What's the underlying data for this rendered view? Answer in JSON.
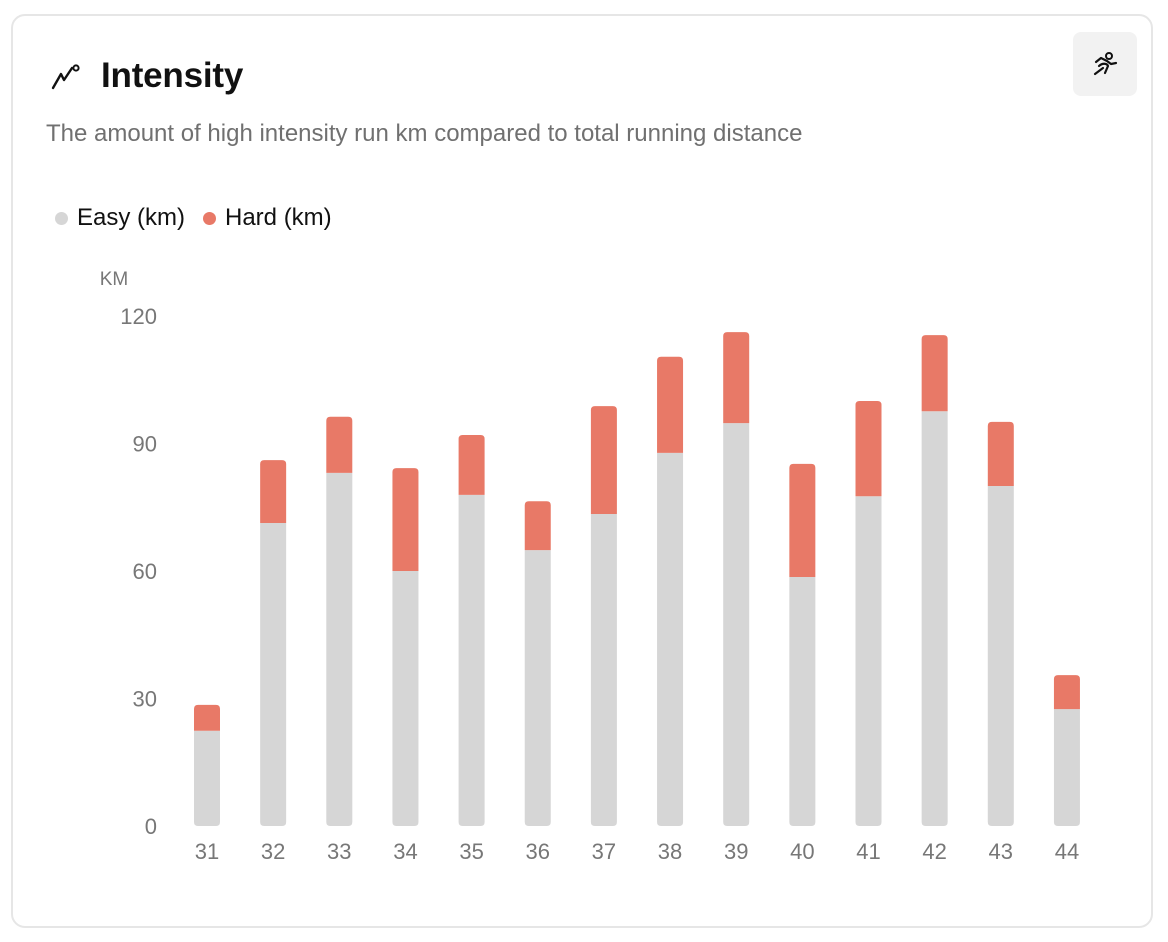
{
  "card": {
    "title": "Intensity",
    "title_icon": "trend-line-icon",
    "action_icon": "running-figure-icon",
    "subtitle": "The amount of high intensity run km compared to total running distance"
  },
  "colors": {
    "easy": "#d6d6d6",
    "hard": "#e87967",
    "text_muted": "#777777"
  },
  "chart_data": {
    "type": "bar",
    "stacked": true,
    "title": "Intensity",
    "subtitle": "The amount of high intensity run km compared to total running distance",
    "xlabel": "",
    "ylabel": "KM",
    "ylim": [
      0,
      120
    ],
    "yticks": [
      0,
      30,
      60,
      90,
      120
    ],
    "grid": false,
    "legend": "top-left",
    "categories": [
      "31",
      "32",
      "33",
      "34",
      "35",
      "36",
      "37",
      "38",
      "39",
      "40",
      "41",
      "42",
      "43",
      "44"
    ],
    "series": [
      {
        "name": "Easy (km)",
        "color": "#d6d6d6",
        "values": [
          22.4,
          71.3,
          83.1,
          60.0,
          77.9,
          64.9,
          73.4,
          87.8,
          94.8,
          58.6,
          77.6,
          97.6,
          80.0,
          27.5
        ]
      },
      {
        "name": "Hard (km)",
        "color": "#e87967",
        "values": [
          6.1,
          14.8,
          13.2,
          24.2,
          14.1,
          11.5,
          25.4,
          22.6,
          21.4,
          26.6,
          22.4,
          17.9,
          15.1,
          8.0
        ]
      }
    ]
  }
}
